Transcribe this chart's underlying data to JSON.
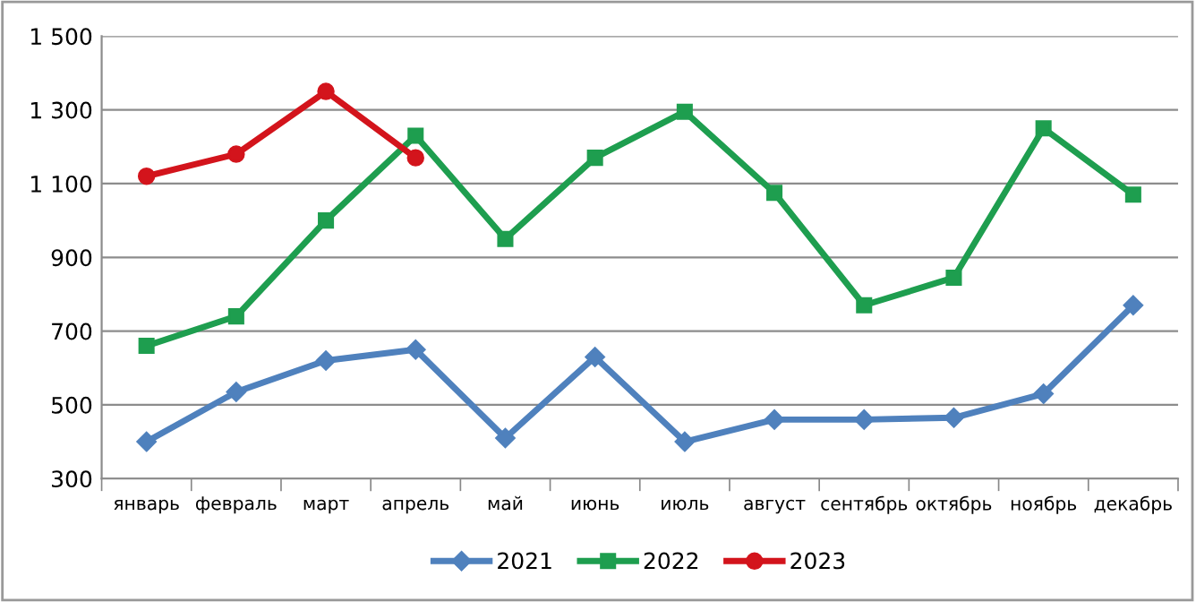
{
  "chart_data": {
    "type": "line",
    "categories": [
      "январь",
      "февраль",
      "март",
      "апрель",
      "май",
      "июнь",
      "июль",
      "август",
      "сентябрь",
      "октябрь",
      "ноябрь",
      "декабрь"
    ],
    "series": [
      {
        "name": "2021",
        "color": "#4f81bd",
        "marker": "diamond",
        "values": [
          400,
          535,
          620,
          650,
          410,
          630,
          400,
          460,
          460,
          465,
          530,
          770
        ]
      },
      {
        "name": "2022",
        "color": "#1e9e4f",
        "marker": "square",
        "values": [
          660,
          740,
          1000,
          1230,
          950,
          1170,
          1295,
          1075,
          770,
          845,
          1250,
          1070
        ]
      },
      {
        "name": "2023",
        "color": "#d3141c",
        "marker": "circle",
        "values": [
          1120,
          1180,
          1350,
          1170,
          null,
          null,
          null,
          null,
          null,
          null,
          null,
          null
        ]
      }
    ],
    "ylim": [
      300,
      1500
    ],
    "yticks": [
      {
        "value": 300,
        "label": "300"
      },
      {
        "value": 500,
        "label": "500"
      },
      {
        "value": 700,
        "label": "700"
      },
      {
        "value": 900,
        "label": "900"
      },
      {
        "value": 1100,
        "label": "1 100"
      },
      {
        "value": 1300,
        "label": "1 300"
      },
      {
        "value": 1500,
        "label": "1 500"
      }
    ],
    "grid": "y",
    "legend": "bottom",
    "line_style": "solid"
  }
}
